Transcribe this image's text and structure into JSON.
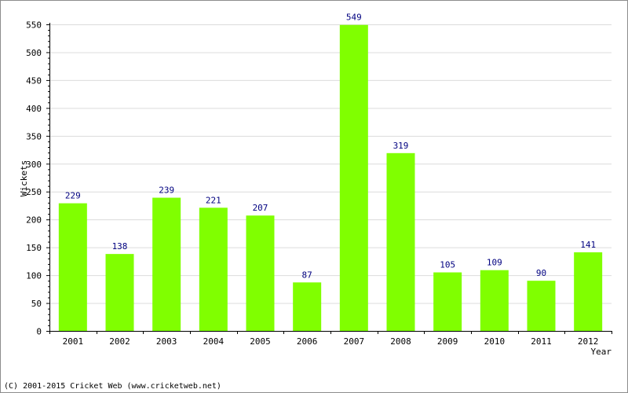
{
  "chart_data": {
    "type": "bar",
    "xlabel": "Year",
    "ylabel": "Wickets",
    "ylim": [
      0,
      550
    ],
    "y_ticks": [
      0,
      50,
      100,
      150,
      200,
      250,
      300,
      350,
      400,
      450,
      500,
      550
    ],
    "categories": [
      "2001",
      "2002",
      "2003",
      "2004",
      "2005",
      "2006",
      "2007",
      "2008",
      "2009",
      "2010",
      "2011",
      "2012"
    ],
    "values": [
      229,
      138,
      239,
      221,
      207,
      87,
      549,
      319,
      105,
      109,
      90,
      141
    ],
    "data_labels": true,
    "grid": true,
    "colors": {
      "bar": "#80ff00",
      "data_label": "#000080",
      "grid": "#dcdcdc",
      "axis": "#000000",
      "text": "#000000"
    }
  },
  "footer": {
    "copyright": "(C) 2001-2015 Cricket Web (www.cricketweb.net)"
  }
}
